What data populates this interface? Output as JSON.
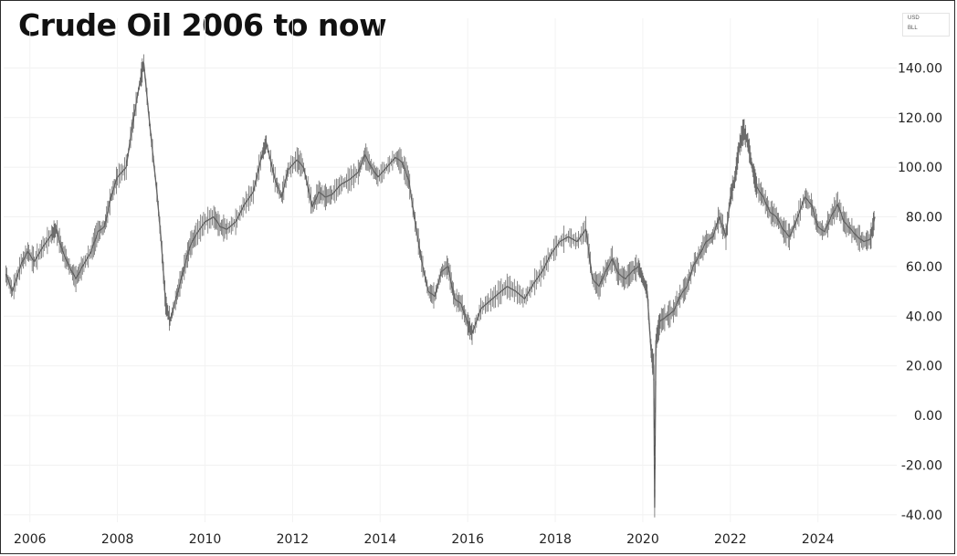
{
  "chart_data": {
    "type": "line",
    "title": "Crude Oil 2006 to now",
    "currency": "USD",
    "unit": "BLL",
    "xlabel": "",
    "ylabel": "",
    "xlim": [
      2005.4,
      2025.8
    ],
    "ylim": [
      -43,
      160
    ],
    "grid": true,
    "y_ticks": [
      "140.00",
      "120.00",
      "100.00",
      "80.00",
      "60.00",
      "40.00",
      "20.00",
      "0.00",
      "-20.00",
      "-40.00"
    ],
    "x_ticks": [
      "2006",
      "2008",
      "2010",
      "2012",
      "2014",
      "2016",
      "2018",
      "2020",
      "2022",
      "2024"
    ],
    "series": [
      {
        "color": "#555555",
        "x": [
          2005.45,
          2005.6,
          2005.8,
          2005.95,
          2006.1,
          2006.3,
          2006.5,
          2006.6,
          2006.75,
          2006.9,
          2007.05,
          2007.2,
          2007.4,
          2007.55,
          2007.7,
          2007.85,
          2008.0,
          2008.2,
          2008.35,
          2008.5,
          2008.6,
          2008.75,
          2008.9,
          2009.0,
          2009.1,
          2009.2,
          2009.35,
          2009.5,
          2009.65,
          2009.8,
          2010.0,
          2010.2,
          2010.35,
          2010.5,
          2010.7,
          2010.9,
          2011.1,
          2011.3,
          2011.4,
          2011.6,
          2011.75,
          2011.9,
          2012.1,
          2012.25,
          2012.45,
          2012.6,
          2012.75,
          2012.9,
          2013.1,
          2013.3,
          2013.5,
          2013.65,
          2013.8,
          2013.95,
          2014.15,
          2014.35,
          2014.5,
          2014.65,
          2014.8,
          2014.95,
          2015.1,
          2015.25,
          2015.4,
          2015.55,
          2015.7,
          2015.85,
          2016.0,
          2016.1,
          2016.3,
          2016.5,
          2016.7,
          2016.9,
          2017.1,
          2017.3,
          2017.5,
          2017.7,
          2017.9,
          2018.1,
          2018.3,
          2018.5,
          2018.7,
          2018.85,
          2019.0,
          2019.15,
          2019.3,
          2019.45,
          2019.6,
          2019.75,
          2019.9,
          2020.0,
          2020.1,
          2020.18,
          2020.22,
          2020.25,
          2020.27,
          2020.3,
          2020.4,
          2020.55,
          2020.7,
          2020.85,
          2021.0,
          2021.15,
          2021.3,
          2021.45,
          2021.6,
          2021.75,
          2021.9,
          2022.0,
          2022.1,
          2022.2,
          2022.3,
          2022.4,
          2022.5,
          2022.6,
          2022.75,
          2022.9,
          2023.05,
          2023.2,
          2023.35,
          2023.5,
          2023.7,
          2023.85,
          2024.0,
          2024.15,
          2024.3,
          2024.45,
          2024.6,
          2024.75,
          2024.9,
          2025.05,
          2025.2,
          2025.3
        ],
        "y": [
          57,
          50,
          61,
          66,
          62,
          68,
          73,
          75,
          66,
          60,
          55,
          60,
          66,
          74,
          76,
          88,
          96,
          100,
          118,
          133,
          142,
          115,
          90,
          70,
          45,
          38,
          48,
          58,
          68,
          73,
          78,
          80,
          76,
          75,
          78,
          85,
          90,
          105,
          110,
          95,
          88,
          99,
          103,
          100,
          84,
          90,
          88,
          89,
          93,
          95,
          98,
          105,
          100,
          96,
          100,
          104,
          102,
          95,
          78,
          62,
          50,
          48,
          58,
          60,
          47,
          45,
          37,
          33,
          43,
          46,
          49,
          52,
          50,
          47,
          53,
          58,
          65,
          70,
          72,
          70,
          75,
          55,
          52,
          58,
          63,
          57,
          55,
          58,
          60,
          55,
          50,
          28,
          22,
          20,
          -37,
          30,
          38,
          40,
          42,
          48,
          52,
          60,
          65,
          70,
          72,
          80,
          72,
          88,
          95,
          108,
          115,
          110,
          100,
          92,
          88,
          82,
          80,
          75,
          72,
          78,
          88,
          85,
          76,
          74,
          80,
          85,
          78,
          75,
          72,
          70,
          71,
          80
        ]
      }
    ]
  }
}
